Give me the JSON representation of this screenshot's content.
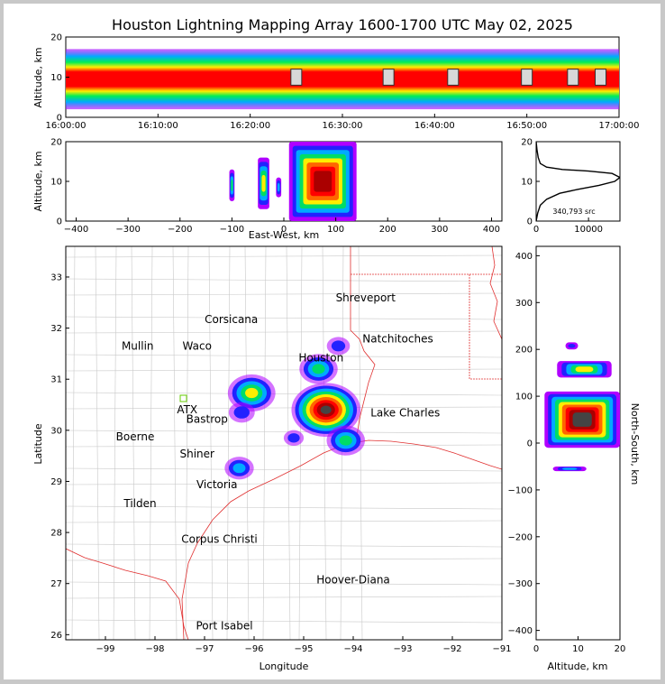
{
  "title": "Houston Lightning Mapping Array 1600-1700 UTC May 02, 2025",
  "chart_data": [
    {
      "type": "heatmap",
      "panel": "altitude-time",
      "xlabel": "",
      "ylabel": "Altitude, km",
      "xlim": [
        "16:00:00",
        "17:00:00"
      ],
      "ylim": [
        0,
        20
      ],
      "xticks": [
        "16:00:00",
        "16:10:00",
        "16:20:00",
        "16:30:00",
        "16:40:00",
        "16:50:00",
        "17:00:00"
      ],
      "yticks": [
        "0",
        "10",
        "20"
      ],
      "core_altitude_km": [
        7,
        13
      ],
      "white_core_times": [
        "16:25:00",
        "16:35:00",
        "16:42:00",
        "16:50:00",
        "16:55:00",
        "16:58:00"
      ]
    },
    {
      "type": "heatmap",
      "panel": "altitude-east-west",
      "xlabel": "East-West, km",
      "ylabel": "Altitude, km",
      "xlim": [
        -420,
        420
      ],
      "ylim": [
        0,
        20
      ],
      "xticks": [
        "−400",
        "−300",
        "−200",
        "−100",
        "0",
        "100",
        "200",
        "300",
        "400"
      ],
      "yticks": [
        "0",
        "10",
        "20"
      ],
      "cells": [
        {
          "x": [
            -105,
            -95
          ],
          "y": [
            5,
            13
          ],
          "intensity": 0.4
        },
        {
          "x": [
            -50,
            -28
          ],
          "y": [
            3,
            16
          ],
          "intensity": 0.55
        },
        {
          "x": [
            -15,
            -5
          ],
          "y": [
            6,
            11
          ],
          "intensity": 0.3
        },
        {
          "x": [
            10,
            140
          ],
          "y": [
            0,
            20
          ],
          "intensity": 0.92
        }
      ]
    },
    {
      "type": "line",
      "panel": "altitude-histogram",
      "label": "340,793 src",
      "xlim": [
        0,
        16000
      ],
      "ylim": [
        0,
        20
      ],
      "xticks": [
        "0",
        "10000"
      ],
      "yticks": [
        "0",
        "10",
        "20"
      ],
      "x": [
        0,
        300,
        800,
        2000,
        4500,
        8000,
        12000,
        15000,
        16000,
        14500,
        10000,
        5000,
        2000,
        800,
        400,
        150,
        0
      ],
      "y": [
        0,
        2,
        4,
        5.5,
        7,
        8,
        9,
        10,
        11,
        12,
        12.6,
        13,
        13.6,
        14.5,
        16,
        18,
        20
      ]
    },
    {
      "type": "heatmap",
      "panel": "plan-view",
      "xlabel": "Longitude",
      "ylabel": "Latitude",
      "xlim": [
        -99.8,
        -91
      ],
      "ylim": [
        25.9,
        33.6
      ],
      "xticks": [
        "−99",
        "−98",
        "−97",
        "−96",
        "−95",
        "−94",
        "−93",
        "−92",
        "−91"
      ],
      "yticks": [
        "26",
        "27",
        "28",
        "29",
        "30",
        "31",
        "32",
        "33"
      ],
      "cells": [
        {
          "lon": -96.05,
          "lat": 30.73,
          "intensity": 0.6
        },
        {
          "lon": -96.25,
          "lat": 30.35,
          "intensity": 0.25
        },
        {
          "lon": -96.3,
          "lat": 29.26,
          "intensity": 0.3
        },
        {
          "lon": -94.7,
          "lat": 31.2,
          "intensity": 0.45
        },
        {
          "lon": -94.3,
          "lat": 31.65,
          "intensity": 0.2
        },
        {
          "lon": -94.55,
          "lat": 30.4,
          "intensity": 0.95
        },
        {
          "lon": -94.15,
          "lat": 29.8,
          "intensity": 0.45
        },
        {
          "lon": -95.2,
          "lat": 29.85,
          "intensity": 0.15
        }
      ],
      "places": [
        {
          "name": "Shreveport",
          "lon": -93.75,
          "lat": 32.52,
          "color": "#000000"
        },
        {
          "name": "Corsicana",
          "lon": -96.46,
          "lat": 32.1,
          "color": "#000000"
        },
        {
          "name": "Waco",
          "lon": -97.15,
          "lat": 31.58,
          "color": "#000000"
        },
        {
          "name": "Natchitoches",
          "lon": -93.1,
          "lat": 31.72,
          "color": "#000000"
        },
        {
          "name": "Mullin",
          "lon": -98.35,
          "lat": 31.58,
          "color": "#ff8c3c"
        },
        {
          "name": "ATX",
          "lon": -97.35,
          "lat": 30.33,
          "color": "#ff8c3c"
        },
        {
          "name": "Bastrop",
          "lon": -96.95,
          "lat": 30.15,
          "color": "#000000"
        },
        {
          "name": "Boerne",
          "lon": -98.4,
          "lat": 29.8,
          "color": "#000000"
        },
        {
          "name": "Lake Charles",
          "lon": -92.95,
          "lat": 30.27,
          "color": "#000000"
        },
        {
          "name": "Shiner",
          "lon": -97.15,
          "lat": 29.47,
          "color": "#000000"
        },
        {
          "name": "Victoria",
          "lon": -96.75,
          "lat": 28.87,
          "color": "#000000"
        },
        {
          "name": "Tilden",
          "lon": -98.3,
          "lat": 28.5,
          "color": "#000000"
        },
        {
          "name": "Corpus Christi",
          "lon": -96.7,
          "lat": 27.8,
          "color": "#000000"
        },
        {
          "name": "Hoover-Diana",
          "lon": -94.0,
          "lat": 27.0,
          "color": "#1a1aff"
        },
        {
          "name": "Port Isabel",
          "lon": -96.6,
          "lat": 26.1,
          "color": "#000000"
        },
        {
          "name": "Houston",
          "lon": -94.65,
          "lat": 31.35,
          "color": "#000000"
        }
      ]
    },
    {
      "type": "heatmap",
      "panel": "north-south-altitude",
      "xlabel": "Altitude, km",
      "ylabel": "North-South, km",
      "xlim": [
        0,
        20
      ],
      "ylim": [
        -420,
        420
      ],
      "xticks": [
        "0",
        "10",
        "20"
      ],
      "yticks": [
        "−400",
        "−300",
        "−200",
        "−100",
        "0",
        "100",
        "200",
        "300",
        "400"
      ],
      "cells": [
        {
          "alt": [
            5,
            18
          ],
          "ns": [
            140,
            175
          ],
          "intensity": 0.55
        },
        {
          "alt": [
            2,
            20
          ],
          "ns": [
            -10,
            110
          ],
          "intensity": 0.95
        },
        {
          "alt": [
            4,
            12
          ],
          "ns": [
            -60,
            -50
          ],
          "intensity": 0.3
        },
        {
          "alt": [
            7,
            10
          ],
          "ns": [
            200,
            215
          ],
          "intensity": 0.15
        }
      ]
    }
  ]
}
